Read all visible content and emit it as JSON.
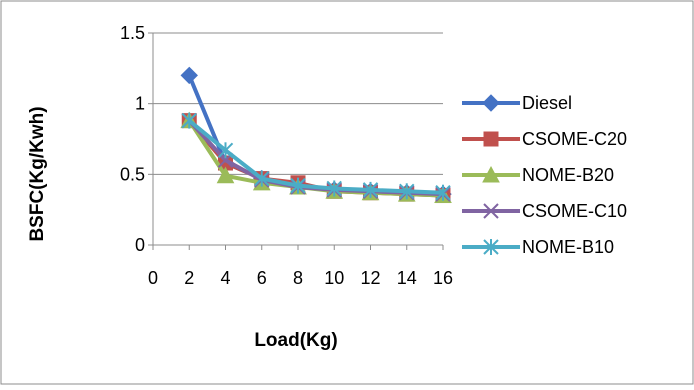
{
  "chart_data": {
    "type": "line",
    "title": "",
    "xlabel": "Load(Kg)",
    "ylabel": "BSFC(Kg/Kwh)",
    "xlim": [
      0,
      16
    ],
    "ylim": [
      0,
      1.5
    ],
    "x_ticks": [
      "0",
      "2",
      "4",
      "6",
      "8",
      "10",
      "12",
      "14",
      "16"
    ],
    "y_ticks": [
      "0",
      "0.5",
      "1",
      "1.5"
    ],
    "grid": "y-major",
    "legend_position": "right",
    "series": [
      {
        "name": "Diesel",
        "color": "#4472C4",
        "marker": "diamond",
        "x": [
          2,
          4,
          6,
          8,
          10,
          12,
          14,
          16
        ],
        "values": [
          1.2,
          0.58,
          0.47,
          0.42,
          0.39,
          0.38,
          0.37,
          0.36
        ]
      },
      {
        "name": "CSOME-C20",
        "color": "#C0504D",
        "marker": "square",
        "x": [
          2,
          4,
          6,
          8,
          10,
          12,
          14,
          16
        ],
        "values": [
          0.88,
          0.58,
          0.47,
          0.44,
          0.38,
          0.37,
          0.36,
          0.35
        ]
      },
      {
        "name": "NOME-B20",
        "color": "#9BBB59",
        "marker": "triangle",
        "x": [
          2,
          4,
          6,
          8,
          10,
          12,
          14,
          16
        ],
        "values": [
          0.88,
          0.49,
          0.44,
          0.41,
          0.38,
          0.37,
          0.36,
          0.35
        ]
      },
      {
        "name": "CSOME-C10",
        "color": "#8064A2",
        "marker": "x",
        "x": [
          2,
          4,
          6,
          8,
          10,
          12,
          14,
          16
        ],
        "values": [
          0.88,
          0.6,
          0.46,
          0.41,
          0.39,
          0.38,
          0.37,
          0.36
        ]
      },
      {
        "name": "NOME-B10",
        "color": "#4BACC6",
        "marker": "asterisk",
        "x": [
          2,
          4,
          6,
          8,
          10,
          12,
          14,
          16
        ],
        "values": [
          0.88,
          0.67,
          0.47,
          0.42,
          0.4,
          0.39,
          0.38,
          0.37
        ]
      }
    ]
  }
}
